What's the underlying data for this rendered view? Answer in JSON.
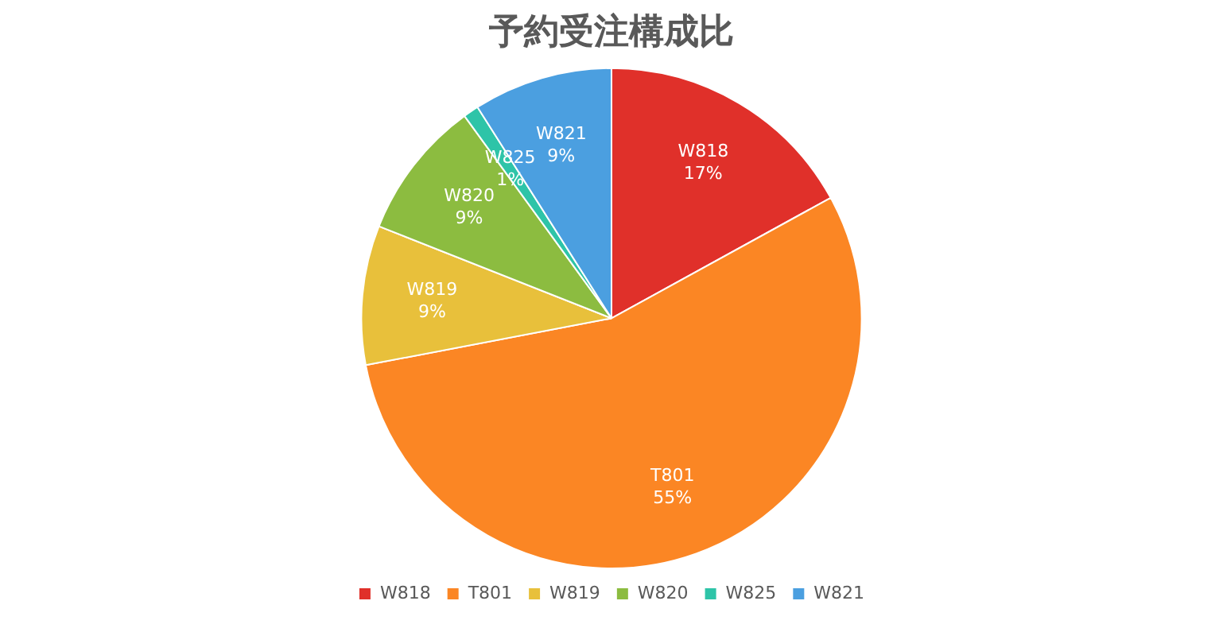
{
  "chart_data": {
    "type": "pie",
    "title": "予約受注構成比",
    "categories": [
      "W818",
      "T801",
      "W819",
      "W820",
      "W825",
      "W821"
    ],
    "values": [
      17,
      55,
      9,
      9,
      1,
      9
    ],
    "value_labels": [
      "17%",
      "55%",
      "9%",
      "9%",
      "1%",
      "9%"
    ],
    "colors": [
      "#e0302a",
      "#fb8624",
      "#e8c03b",
      "#8cbc40",
      "#2ec4a8",
      "#4b9fe0"
    ],
    "legend": "bottom"
  }
}
